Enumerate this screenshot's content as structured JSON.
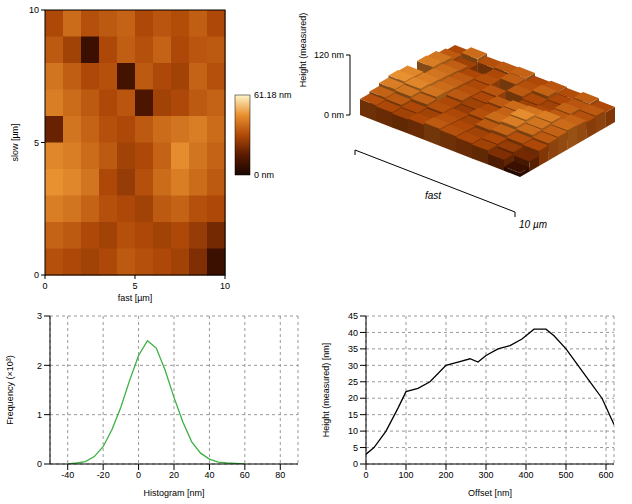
{
  "chart_data": [
    {
      "type": "heatmap",
      "x_label": "fast [µm]",
      "y_label": "slow [µm]",
      "xlim": [
        0,
        10
      ],
      "ylim": [
        0,
        10
      ],
      "xticks": [
        0,
        5,
        10
      ],
      "yticks": [
        0,
        5,
        10
      ],
      "cells": [
        [
          30,
          38,
          32,
          34,
          36,
          30,
          33,
          31,
          35,
          30
        ],
        [
          34,
          28,
          8,
          30,
          35,
          32,
          36,
          30,
          33,
          34
        ],
        [
          40,
          35,
          30,
          32,
          10,
          34,
          30,
          28,
          36,
          32
        ],
        [
          42,
          38,
          34,
          30,
          33,
          12,
          28,
          30,
          34,
          36
        ],
        [
          18,
          40,
          36,
          32,
          30,
          34,
          38,
          40,
          42,
          38
        ],
        [
          44,
          42,
          38,
          34,
          28,
          30,
          36,
          45,
          40,
          36
        ],
        [
          46,
          44,
          40,
          30,
          26,
          32,
          38,
          42,
          38,
          34
        ],
        [
          42,
          40,
          36,
          32,
          30,
          28,
          34,
          36,
          32,
          30
        ],
        [
          36,
          34,
          30,
          28,
          32,
          30,
          28,
          30,
          26,
          20
        ],
        [
          32,
          30,
          28,
          30,
          34,
          32,
          30,
          28,
          22,
          8
        ]
      ],
      "colorbar_range": [
        0,
        61.18
      ],
      "colorbar_ticks": [
        {
          "value": 61.18,
          "label": "61.18 nm"
        },
        {
          "value": 0,
          "label": "0 nm"
        }
      ]
    },
    {
      "type": "surface",
      "x_label": "fast",
      "xlim": [
        0,
        10
      ],
      "xticks": [
        {
          "value": 10,
          "label": "10 µm"
        }
      ],
      "z_label": "Height (measured)",
      "zlim": [
        0,
        120
      ],
      "zticks": [
        {
          "value": 120,
          "label": "120 nm"
        },
        {
          "value": 0,
          "label": "0 nm"
        }
      ]
    },
    {
      "type": "line",
      "x_label": "Histogram [nm]",
      "y_label": "Frequency (×10³)",
      "x": [
        -40,
        -35,
        -30,
        -25,
        -20,
        -15,
        -10,
        -5,
        0,
        5,
        10,
        15,
        20,
        25,
        30,
        35,
        40,
        45,
        50,
        55,
        60
      ],
      "values": [
        0,
        0.02,
        0.05,
        0.15,
        0.35,
        0.7,
        1.15,
        1.7,
        2.2,
        2.5,
        2.35,
        1.9,
        1.35,
        0.85,
        0.45,
        0.22,
        0.1,
        0.04,
        0.02,
        0.01,
        0
      ],
      "xlim": [
        -50,
        90
      ],
      "xticks": [
        -40,
        -20,
        0,
        20,
        40,
        60,
        80
      ],
      "ylim": [
        0,
        3
      ],
      "yticks": [
        0,
        1,
        2,
        3
      ],
      "color": "#3cb043",
      "grid": true
    },
    {
      "type": "line",
      "x_label": "Offset [nm]",
      "y_label": "Height (measured) [nm]",
      "x": [
        0,
        20,
        50,
        80,
        100,
        130,
        160,
        200,
        230,
        260,
        280,
        300,
        330,
        360,
        390,
        420,
        450,
        470,
        500,
        530,
        560,
        590,
        620
      ],
      "values": [
        3,
        5,
        10,
        17,
        22,
        23,
        25,
        30,
        31,
        32,
        31,
        33,
        35,
        36,
        38,
        41,
        41,
        39,
        35,
        30,
        25,
        20,
        12
      ],
      "xlim": [
        0,
        620
      ],
      "xticks": [
        0,
        100,
        200,
        300,
        400,
        500,
        600
      ],
      "ylim": [
        0,
        45
      ],
      "yticks": [
        0,
        5,
        10,
        15,
        20,
        25,
        30,
        35,
        40,
        45
      ],
      "color": "#000000",
      "grid": true
    }
  ]
}
